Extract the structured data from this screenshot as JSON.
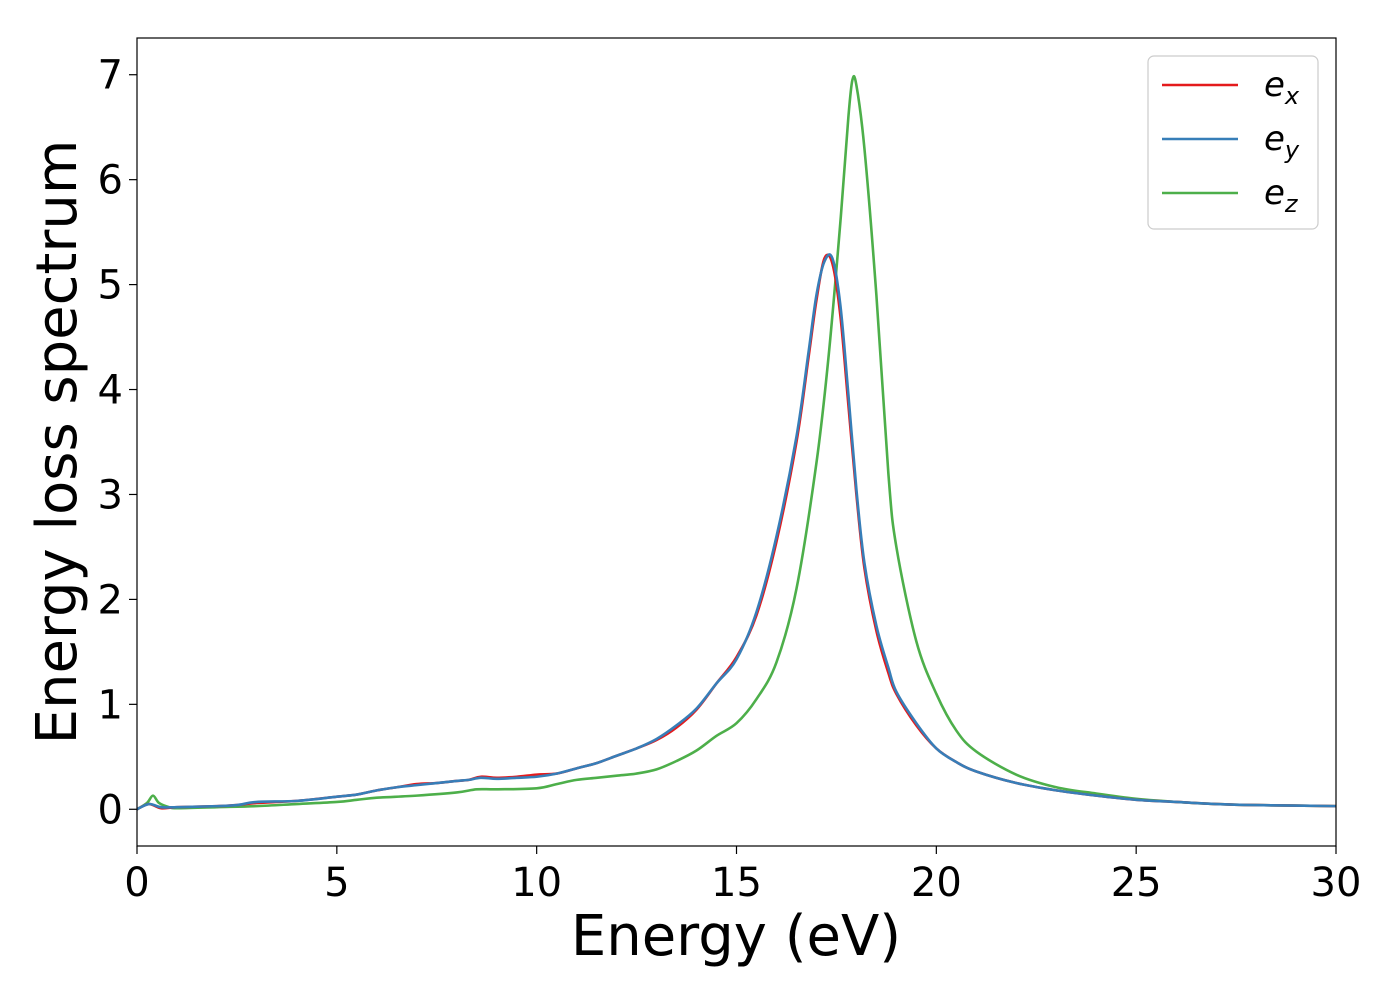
{
  "chart_data": {
    "type": "line",
    "xlabel": "Energy (eV)",
    "ylabel": "Energy loss spectrum",
    "xlim": [
      0,
      30
    ],
    "ylim": [
      -0.35,
      7.35
    ],
    "xticks": [
      "0",
      "5",
      "10",
      "15",
      "20",
      "25",
      "30"
    ],
    "yticks": [
      "0",
      "1",
      "2",
      "3",
      "4",
      "5",
      "6",
      "7"
    ],
    "grid": false,
    "legend_position": "top-right",
    "series": [
      {
        "name": "e_x",
        "label_base": "e",
        "label_sub": "x",
        "color": "#e41a1c",
        "x": [
          0,
          0.3,
          0.6,
          1,
          2,
          2.5,
          3,
          4,
          5,
          5.5,
          6,
          6.5,
          7,
          7.5,
          8,
          8.3,
          8.6,
          9,
          9.5,
          10,
          10.5,
          11,
          11.5,
          12,
          12.5,
          13,
          13.5,
          14,
          14.5,
          15,
          15.5,
          16,
          16.5,
          16.8,
          17,
          17.2,
          17.4,
          17.6,
          17.8,
          18,
          18.2,
          18.5,
          18.8,
          19,
          19.5,
          20,
          20.5,
          21,
          22,
          23,
          24,
          25,
          26,
          27,
          28,
          30
        ],
        "values": [
          0.0,
          0.05,
          0.01,
          0.02,
          0.03,
          0.04,
          0.06,
          0.08,
          0.12,
          0.14,
          0.18,
          0.21,
          0.24,
          0.25,
          0.27,
          0.28,
          0.31,
          0.3,
          0.31,
          0.33,
          0.34,
          0.39,
          0.44,
          0.51,
          0.58,
          0.66,
          0.78,
          0.95,
          1.2,
          1.45,
          1.85,
          2.55,
          3.5,
          4.3,
          4.85,
          5.25,
          5.2,
          4.7,
          3.85,
          3.0,
          2.3,
          1.7,
          1.3,
          1.1,
          0.8,
          0.58,
          0.45,
          0.36,
          0.25,
          0.18,
          0.13,
          0.09,
          0.07,
          0.05,
          0.04,
          0.03
        ]
      },
      {
        "name": "e_y",
        "label_base": "e",
        "label_sub": "y",
        "color": "#377eb8",
        "x": [
          0,
          0.3,
          0.6,
          1,
          2,
          2.5,
          3,
          4,
          5,
          5.5,
          6,
          6.5,
          7,
          7.5,
          8,
          8.3,
          8.6,
          9,
          9.5,
          10,
          10.5,
          11,
          11.5,
          12,
          12.5,
          13,
          13.5,
          14,
          14.5,
          15,
          15.5,
          16,
          16.5,
          16.8,
          17,
          17.2,
          17.4,
          17.6,
          17.8,
          18,
          18.2,
          18.5,
          18.8,
          19,
          19.5,
          20,
          20.5,
          21,
          22,
          23,
          24,
          25,
          26,
          27,
          28,
          30
        ],
        "values": [
          0.0,
          0.05,
          0.02,
          0.02,
          0.03,
          0.04,
          0.07,
          0.08,
          0.12,
          0.14,
          0.18,
          0.21,
          0.23,
          0.25,
          0.27,
          0.28,
          0.3,
          0.29,
          0.3,
          0.31,
          0.34,
          0.39,
          0.44,
          0.51,
          0.58,
          0.67,
          0.8,
          0.96,
          1.2,
          1.43,
          1.88,
          2.6,
          3.55,
          4.35,
          4.9,
          5.22,
          5.25,
          4.8,
          3.95,
          3.05,
          2.35,
          1.75,
          1.35,
          1.12,
          0.82,
          0.58,
          0.45,
          0.36,
          0.25,
          0.18,
          0.13,
          0.09,
          0.07,
          0.05,
          0.04,
          0.03
        ]
      },
      {
        "name": "e_z",
        "label_base": "e",
        "label_sub": "z",
        "color": "#4daf4a",
        "x": [
          0,
          0.25,
          0.4,
          0.55,
          0.8,
          1,
          2,
          3,
          4,
          5,
          5.5,
          6,
          7,
          8,
          8.5,
          9,
          10,
          10.5,
          11,
          11.5,
          12,
          12.5,
          13,
          13.5,
          14,
          14.5,
          15,
          15.5,
          16,
          16.5,
          17,
          17.3,
          17.6,
          17.8,
          17.9,
          18,
          18.2,
          18.5,
          18.8,
          19,
          19.5,
          20,
          20.5,
          21,
          22,
          23,
          24,
          25,
          26,
          27,
          28,
          30
        ],
        "values": [
          0.0,
          0.06,
          0.13,
          0.06,
          0.02,
          0.01,
          0.02,
          0.03,
          0.05,
          0.07,
          0.09,
          0.11,
          0.13,
          0.16,
          0.19,
          0.19,
          0.2,
          0.24,
          0.28,
          0.3,
          0.32,
          0.34,
          0.38,
          0.46,
          0.56,
          0.7,
          0.82,
          1.05,
          1.4,
          2.1,
          3.3,
          4.3,
          5.6,
          6.6,
          6.95,
          6.9,
          6.3,
          4.9,
          3.2,
          2.5,
          1.6,
          1.1,
          0.75,
          0.55,
          0.33,
          0.21,
          0.15,
          0.1,
          0.07,
          0.05,
          0.04,
          0.03
        ]
      }
    ]
  }
}
